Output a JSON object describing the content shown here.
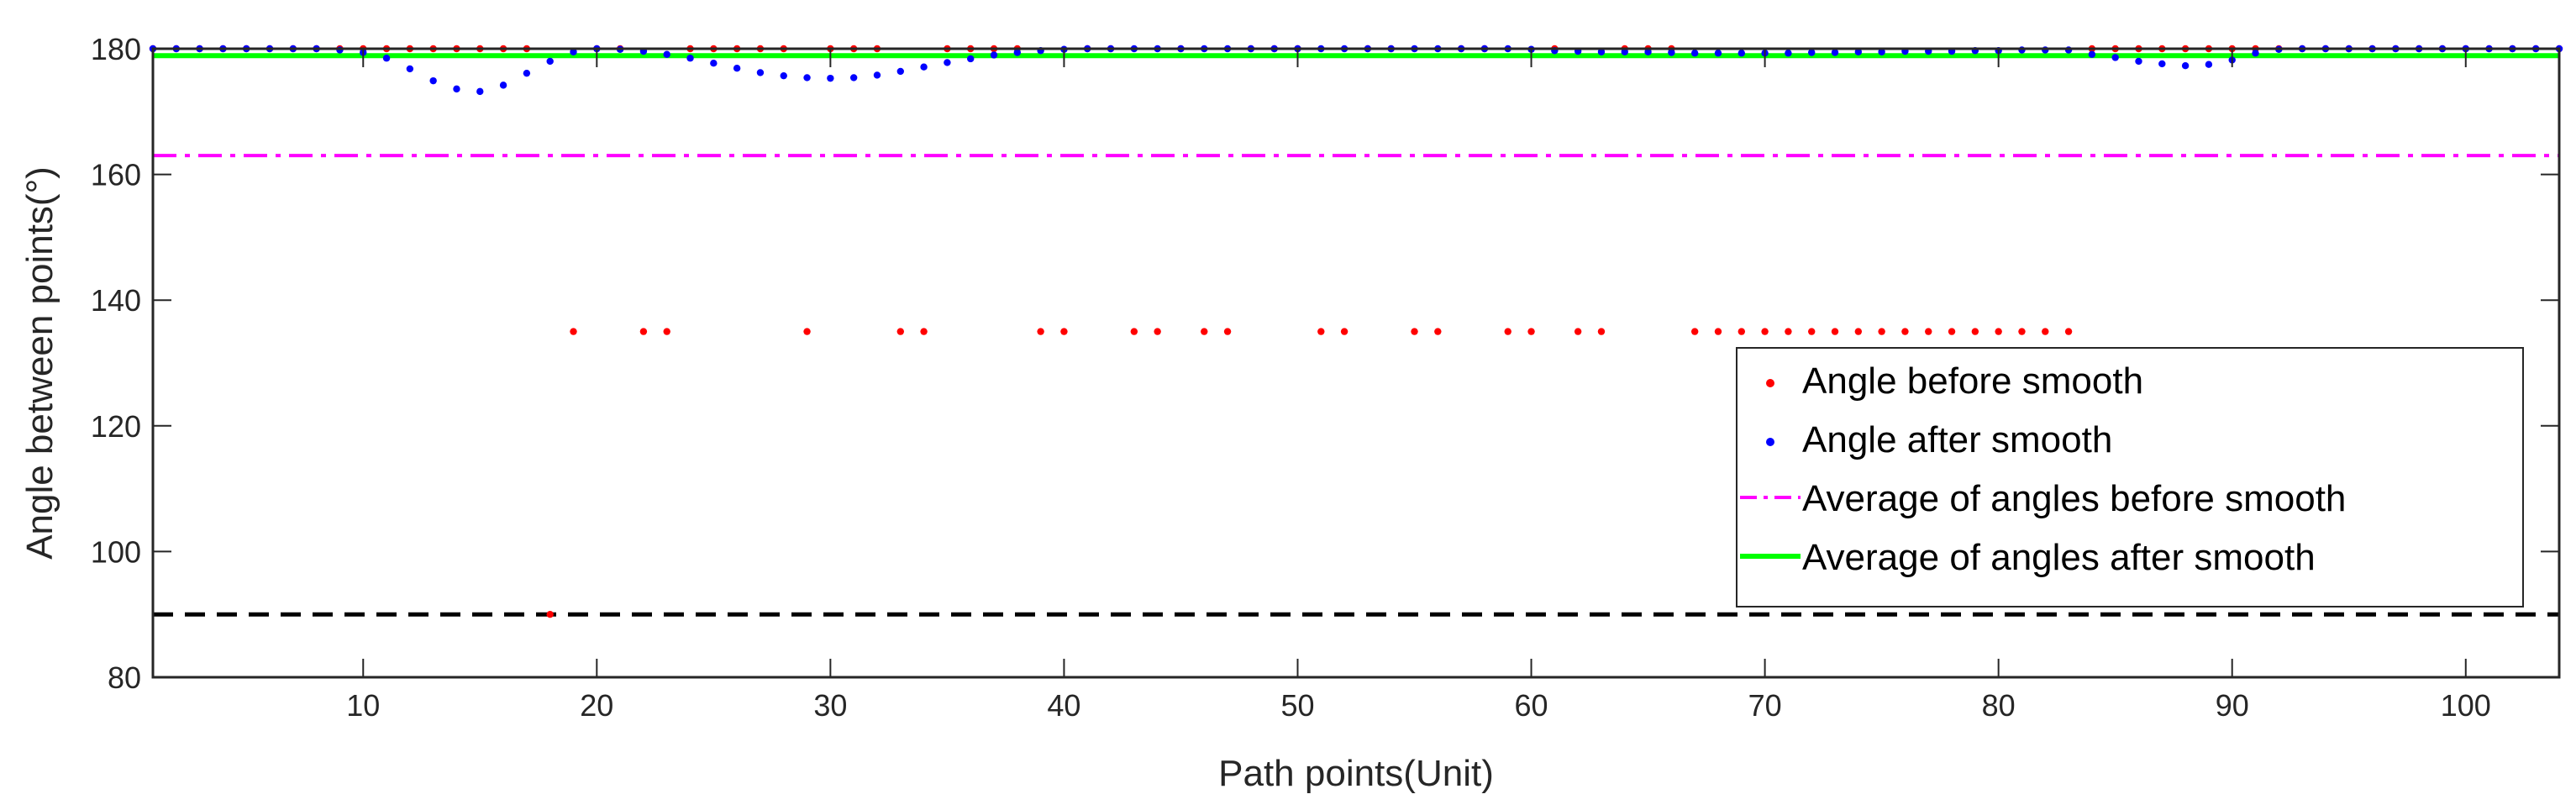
{
  "chart_data": {
    "type": "scatter",
    "xlabel": "Path points(Unit)",
    "ylabel": "Angle between points(°)",
    "xlim": [
      1,
      104
    ],
    "ylim": [
      80,
      180
    ],
    "xticks": [
      10,
      20,
      30,
      40,
      50,
      60,
      70,
      80,
      90,
      100
    ],
    "yticks": [
      80,
      100,
      120,
      140,
      160,
      180
    ],
    "xtick_labels": [
      "10",
      "20",
      "30",
      "40",
      "50",
      "60",
      "70",
      "80",
      "90",
      "100"
    ],
    "ytick_labels": [
      "80",
      "100",
      "120",
      "140",
      "160",
      "180"
    ],
    "grid": false,
    "legend_position": "right",
    "series": [
      {
        "name": "Angle before smooth",
        "kind": "scatter",
        "color": "#ff0000",
        "x": [
          1,
          2,
          3,
          4,
          5,
          6,
          7,
          8,
          9,
          10,
          11,
          12,
          13,
          14,
          15,
          16,
          17,
          18,
          19,
          20,
          21,
          22,
          23,
          24,
          25,
          26,
          27,
          28,
          29,
          30,
          31,
          32,
          33,
          34,
          35,
          36,
          37,
          38,
          39,
          40,
          41,
          42,
          43,
          44,
          45,
          46,
          47,
          48,
          49,
          50,
          51,
          52,
          53,
          54,
          55,
          56,
          57,
          58,
          59,
          60,
          61,
          62,
          63,
          64,
          65,
          66,
          67,
          68,
          69,
          70,
          71,
          72,
          73,
          74,
          75,
          76,
          77,
          78,
          79,
          80,
          81,
          82,
          83,
          84,
          85,
          86,
          87,
          88,
          89,
          90,
          91,
          92,
          93,
          94,
          95,
          96,
          97,
          98,
          99,
          100,
          101,
          102,
          103,
          104
        ],
        "y": [
          180,
          180,
          180,
          180,
          180,
          180,
          180,
          180,
          180,
          180,
          180,
          180,
          180,
          180,
          180,
          180,
          180,
          90,
          135,
          180,
          180,
          135,
          135,
          180,
          180,
          180,
          180,
          180,
          135,
          180,
          180,
          180,
          135,
          135,
          180,
          180,
          180,
          180,
          135,
          135,
          180,
          180,
          135,
          135,
          180,
          135,
          135,
          180,
          180,
          180,
          135,
          135,
          180,
          180,
          135,
          135,
          180,
          180,
          135,
          135,
          180,
          135,
          135,
          180,
          180,
          180,
          135,
          135,
          135,
          135,
          135,
          135,
          135,
          135,
          135,
          135,
          135,
          135,
          135,
          135,
          135,
          135,
          135,
          180,
          180,
          180,
          180,
          180,
          180,
          180,
          180,
          180,
          180,
          180,
          180,
          180,
          180,
          180,
          180,
          180,
          180,
          180,
          180,
          180
        ]
      },
      {
        "name": "Angle after smooth",
        "kind": "scatter",
        "color": "#0000ff",
        "x": [
          1,
          2,
          3,
          4,
          5,
          6,
          7,
          8,
          9,
          10,
          11,
          12,
          13,
          14,
          15,
          16,
          17,
          18,
          19,
          20,
          21,
          22,
          23,
          24,
          25,
          26,
          27,
          28,
          29,
          30,
          31,
          32,
          33,
          34,
          35,
          36,
          37,
          38,
          39,
          40,
          41,
          42,
          43,
          44,
          45,
          46,
          47,
          48,
          49,
          50,
          51,
          52,
          53,
          54,
          55,
          56,
          57,
          58,
          59,
          60,
          61,
          62,
          63,
          64,
          65,
          66,
          67,
          68,
          69,
          70,
          71,
          72,
          73,
          74,
          75,
          76,
          77,
          78,
          79,
          80,
          81,
          82,
          83,
          84,
          85,
          86,
          87,
          88,
          89,
          90,
          91,
          92,
          93,
          94,
          95,
          96,
          97,
          98,
          99,
          100,
          101,
          102,
          103,
          104
        ],
        "y": [
          180,
          180,
          180,
          180,
          180,
          180,
          180,
          180,
          179.8,
          179.4,
          178.5,
          176.8,
          174.9,
          173.6,
          173.2,
          174.2,
          176.1,
          178.0,
          179.5,
          180,
          179.9,
          179.6,
          179.1,
          178.5,
          177.7,
          176.9,
          176.2,
          175.7,
          175.4,
          175.3,
          175.4,
          175.8,
          176.4,
          177.1,
          177.8,
          178.4,
          179.0,
          179.4,
          179.7,
          179.9,
          180,
          180,
          180,
          180,
          180,
          180,
          180,
          180,
          180,
          180,
          180,
          180,
          180,
          180,
          180,
          180,
          180,
          180,
          180,
          179.9,
          179.7,
          179.6,
          179.5,
          179.5,
          179.5,
          179.4,
          179.3,
          179.3,
          179.3,
          179.3,
          179.3,
          179.4,
          179.4,
          179.5,
          179.5,
          179.6,
          179.6,
          179.6,
          179.7,
          179.7,
          179.8,
          179.8,
          179.8,
          179.1,
          178.6,
          178.0,
          177.6,
          177.3,
          177.5,
          178.2,
          179.3,
          179.9,
          180,
          180,
          180,
          180,
          180,
          180,
          180,
          180,
          180,
          180,
          180,
          180
        ]
      },
      {
        "name": "Average of angles before smooth",
        "kind": "hline",
        "color": "#ff00ff",
        "y": 163
      },
      {
        "name": "Average of angles after smooth",
        "kind": "hline",
        "color": "#00ff00",
        "y": 178.9
      }
    ],
    "reference_lines": [
      {
        "kind": "hline",
        "color": "#000000",
        "y": 90
      },
      {
        "kind": "hline",
        "color": "#000000",
        "y": 180
      }
    ]
  }
}
